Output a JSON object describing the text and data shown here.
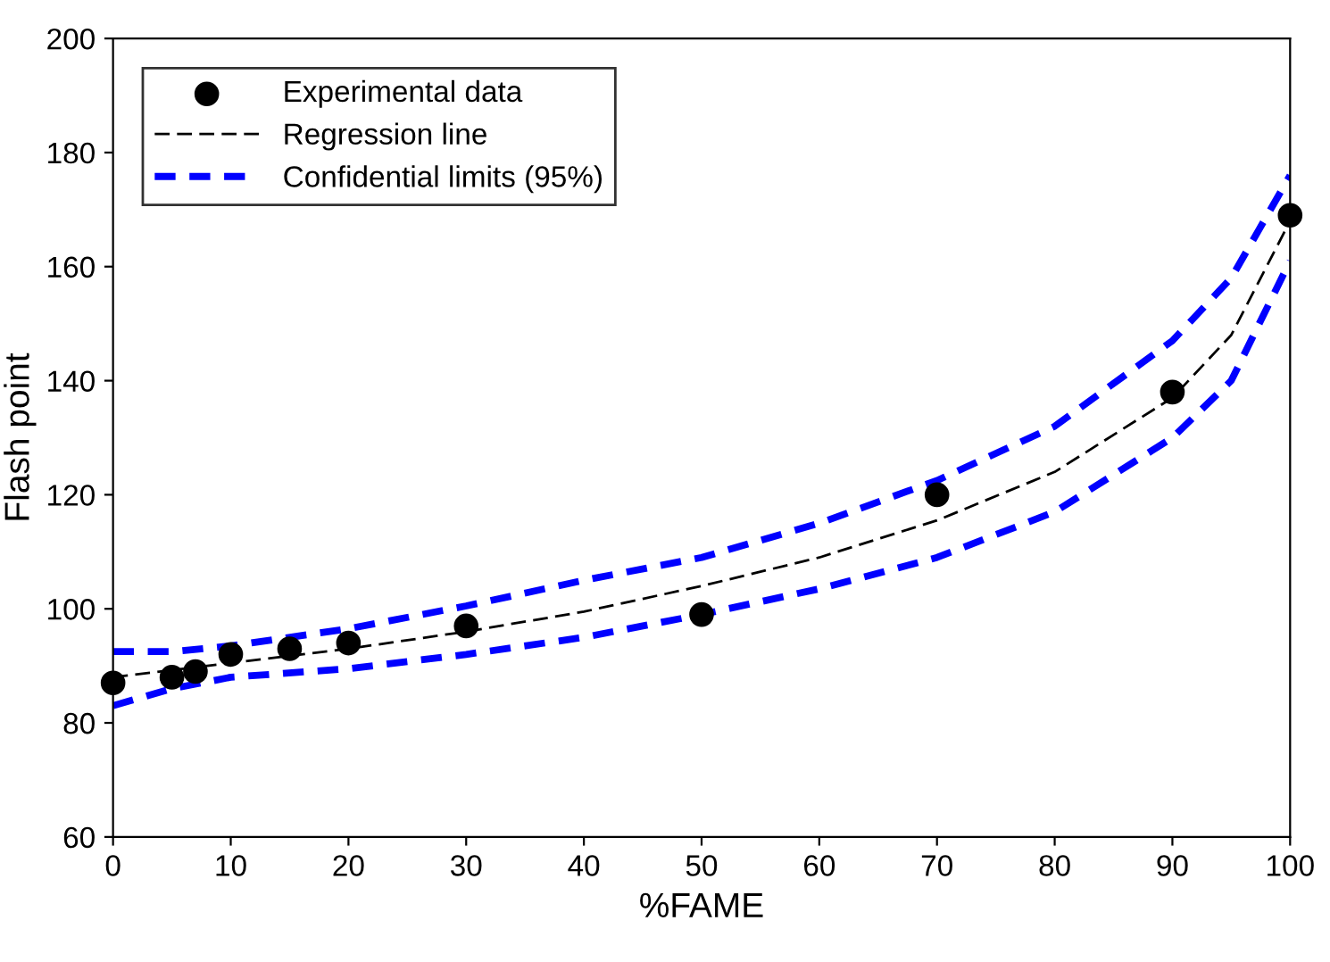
{
  "chart_data": {
    "type": "scatter",
    "xlabel": "%FAME",
    "ylabel": "Flash point",
    "xlim": [
      0,
      100
    ],
    "xticks": [
      0,
      10,
      20,
      30,
      40,
      50,
      60,
      70,
      80,
      90,
      100
    ],
    "ylim": [
      60,
      200
    ],
    "yticks": [
      60,
      80,
      100,
      120,
      140,
      160,
      180,
      200
    ],
    "grid": false,
    "legend": "top left",
    "series": [
      {
        "name": "Experimental data",
        "marker": "circle",
        "color": "#000000",
        "x": [
          0,
          5,
          7,
          10,
          15,
          20,
          30,
          50,
          70,
          90,
          100
        ],
        "values": [
          87,
          88,
          89,
          92,
          93,
          94,
          97,
          99,
          120,
          138,
          169
        ]
      },
      {
        "name": "Regression line",
        "type": "line",
        "line_style": "dashed",
        "color": "#000000",
        "x": [
          0,
          10,
          20,
          30,
          40,
          50,
          60,
          70,
          80,
          90,
          95,
          100
        ],
        "values": [
          88,
          90.5,
          93,
          96,
          99.5,
          104,
          109,
          115.5,
          124,
          137,
          148,
          168
        ]
      },
      {
        "name": "Confidential limits (95%)",
        "type": "line",
        "line_style": "dashed",
        "color": "#0000ff",
        "x": [
          0,
          5,
          10,
          20,
          30,
          40,
          50,
          60,
          70,
          80,
          90,
          95,
          100
        ],
        "values": [
          92.5,
          92.5,
          93.5,
          96.5,
          100.5,
          105,
          109,
          115,
          122.5,
          132,
          147,
          158,
          176
        ]
      },
      {
        "type": "line",
        "line_style": "dashed",
        "color": "#0000ff",
        "x": [
          0,
          5,
          10,
          20,
          30,
          40,
          50,
          60,
          70,
          80,
          90,
          95,
          100
        ],
        "values": [
          83,
          86,
          88,
          89.5,
          92,
          95,
          99,
          103.5,
          109,
          117,
          130,
          140,
          161
        ]
      }
    ]
  }
}
